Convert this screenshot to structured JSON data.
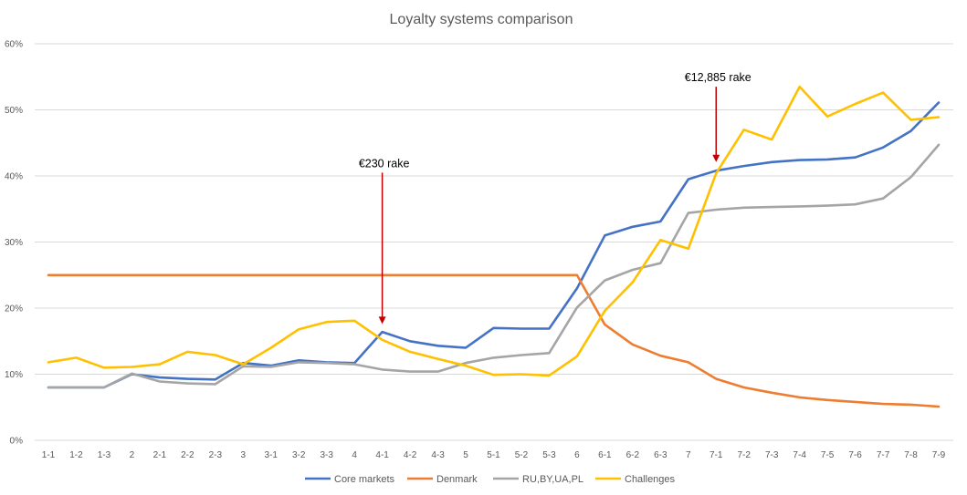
{
  "chart_data": {
    "type": "line",
    "title": "Loyalty systems comparison",
    "xlabel": "",
    "ylabel": "",
    "ylim": [
      0,
      60
    ],
    "y_ticks": [
      "0%",
      "10%",
      "20%",
      "30%",
      "40%",
      "50%",
      "60%"
    ],
    "grid": "horizontal",
    "legend_position": "bottom",
    "categories": [
      "1-1",
      "1-2",
      "1-3",
      "2",
      "2-1",
      "2-2",
      "2-3",
      "3",
      "3-1",
      "3-2",
      "3-3",
      "4",
      "4-1",
      "4-2",
      "4-3",
      "5",
      "5-1",
      "5-2",
      "5-3",
      "6",
      "6-1",
      "6-2",
      "6-3",
      "7",
      "7-1",
      "7-2",
      "7-3",
      "7-4",
      "7-5",
      "7-6",
      "7-7",
      "7-8",
      "7-9"
    ],
    "series": [
      {
        "name": "Core markets",
        "color": "#4472C4",
        "values": [
          8,
          8,
          8,
          10,
          9.5,
          9.3,
          9.2,
          11.7,
          11.3,
          12.1,
          11.8,
          11.7,
          16.4,
          15,
          14.3,
          14,
          17,
          16.9,
          16.9,
          23,
          31,
          32.3,
          33.1,
          39.5,
          40.8,
          41.5,
          42.1,
          42.4,
          42.5,
          42.8,
          44.3,
          46.8,
          51.1
        ]
      },
      {
        "name": "Denmark",
        "color": "#ED7D31",
        "values": [
          25,
          25,
          25,
          25,
          25,
          25,
          25,
          25,
          25,
          25,
          25,
          25,
          25,
          25,
          25,
          25,
          25,
          25,
          25,
          25,
          17.5,
          14.5,
          12.8,
          11.8,
          9.3,
          8,
          7.2,
          6.5,
          6.1,
          5.8,
          5.5,
          5.4,
          5.1
        ]
      },
      {
        "name": "RU,BY,UA,PL",
        "color": "#A5A5A5",
        "values": [
          8,
          8,
          8,
          10.1,
          8.9,
          8.6,
          8.5,
          11.2,
          11.1,
          11.8,
          11.7,
          11.5,
          10.7,
          10.4,
          10.4,
          11.7,
          12.5,
          12.9,
          13.2,
          20.1,
          24.2,
          25.8,
          26.8,
          34.4,
          34.9,
          35.2,
          35.3,
          35.4,
          35.5,
          35.7,
          36.6,
          39.8,
          44.7
        ]
      },
      {
        "name": "Challenges",
        "color": "#FFC000",
        "values": [
          11.8,
          12.5,
          11,
          11.1,
          11.5,
          13.4,
          12.9,
          11.5,
          14,
          16.8,
          17.9,
          18.1,
          15.2,
          13.4,
          12.3,
          11.3,
          9.9,
          10,
          9.8,
          12.7,
          19.6,
          23.9,
          30.3,
          29,
          40.4,
          47,
          45.5,
          53.5,
          49,
          50.9,
          52.6,
          48.5,
          48.9
        ]
      }
    ],
    "annotations": [
      {
        "text": "€230 rake",
        "category": "4-1",
        "y_from": 40.5,
        "y_to": 17.6,
        "color": "#C00000"
      },
      {
        "text": "€12,885  rake",
        "category": "7-1",
        "y_from": 53.5,
        "y_to": 42.1,
        "color": "#C00000"
      }
    ]
  }
}
